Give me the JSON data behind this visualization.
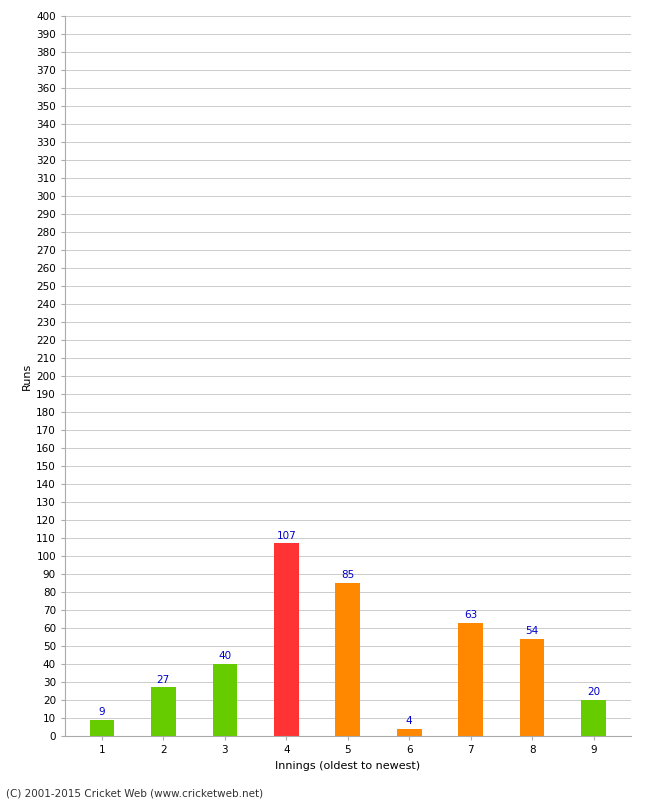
{
  "categories": [
    "1",
    "2",
    "3",
    "4",
    "5",
    "6",
    "7",
    "8",
    "9"
  ],
  "values": [
    9,
    27,
    40,
    107,
    85,
    4,
    63,
    54,
    20
  ],
  "bar_colors": [
    "#66cc00",
    "#66cc00",
    "#66cc00",
    "#ff3333",
    "#ff8800",
    "#ff8800",
    "#ff8800",
    "#ff8800",
    "#66cc00"
  ],
  "ylabel": "Runs",
  "xlabel": "Innings (oldest to newest)",
  "ylim": [
    0,
    400
  ],
  "yticks": [
    0,
    10,
    20,
    30,
    40,
    50,
    60,
    70,
    80,
    90,
    100,
    110,
    120,
    130,
    140,
    150,
    160,
    170,
    180,
    190,
    200,
    210,
    220,
    230,
    240,
    250,
    260,
    270,
    280,
    290,
    300,
    310,
    320,
    330,
    340,
    350,
    360,
    370,
    380,
    390,
    400
  ],
  "background_color": "#ffffff",
  "grid_color": "#cccccc",
  "label_color": "#0000cc",
  "footer": "(C) 2001-2015 Cricket Web (www.cricketweb.net)",
  "bar_width": 0.4,
  "label_fontsize": 7.5,
  "axis_tick_fontsize": 7.5,
  "axis_label_fontsize": 8,
  "footer_fontsize": 7.5
}
